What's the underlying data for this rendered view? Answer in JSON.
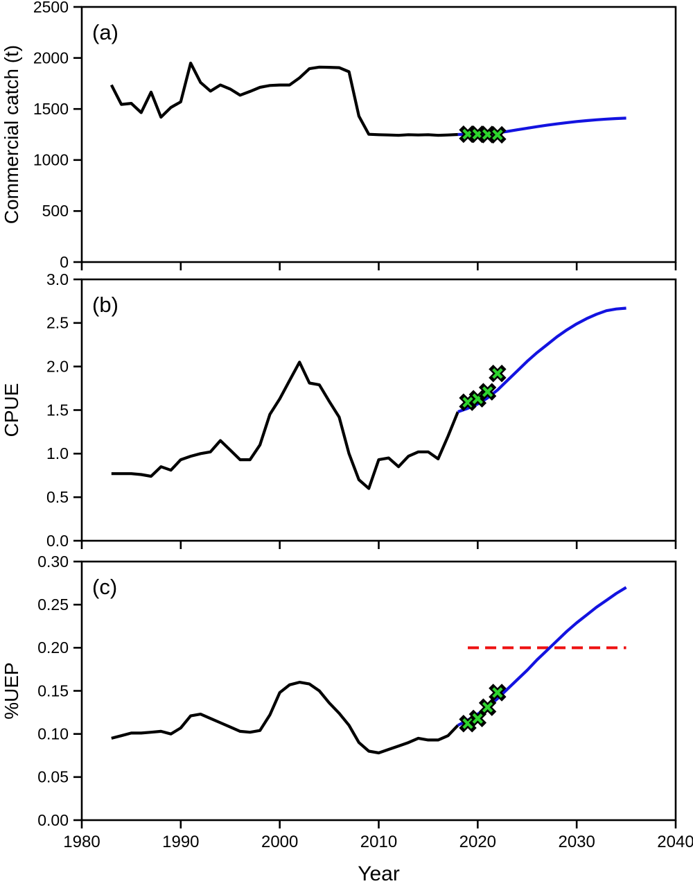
{
  "figure": {
    "description": "Three-panel fishery stock assessment time-series figure",
    "background": "#ffffff",
    "x_axis": {
      "title": "Year",
      "tick_labels": [
        "1980",
        "1990",
        "2000",
        "2010",
        "2020",
        "2030",
        "2040"
      ],
      "range": [
        1980,
        2040
      ]
    },
    "colors": {
      "observed_line": "#000000",
      "projected_line": "#1313e0",
      "marker_fill": "#2ed42e",
      "marker_outline": "#000000",
      "threshold_line": "#ee1111",
      "axis": "#000000"
    }
  },
  "chart_data": [
    {
      "type": "line",
      "panel_letter": "(a)",
      "title": "",
      "xlabel": "Year",
      "ylabel": "Commercial catch (t)",
      "ylim": [
        0,
        2500
      ],
      "y_tick_labels": [
        "0",
        "500",
        "1000",
        "1500",
        "2000",
        "2500"
      ],
      "grid": false,
      "legend": "none",
      "series": [
        {
          "name": "observed-catch",
          "style": "solid-black",
          "x": [
            1983,
            1984,
            1985,
            1986,
            1987,
            1988,
            1989,
            1990,
            1991,
            1992,
            1993,
            1994,
            1995,
            1996,
            1997,
            1998,
            1999,
            2000,
            2001,
            2002,
            2003,
            2004,
            2005,
            2006,
            2007,
            2008,
            2009,
            2010,
            2011,
            2012,
            2013,
            2014,
            2015,
            2016,
            2017,
            2018
          ],
          "y": [
            1735,
            1545,
            1555,
            1465,
            1665,
            1420,
            1515,
            1570,
            1950,
            1760,
            1675,
            1735,
            1695,
            1635,
            1672,
            1712,
            1730,
            1735,
            1735,
            1805,
            1895,
            1910,
            1908,
            1905,
            1865,
            1430,
            1252,
            1248,
            1245,
            1242,
            1248,
            1245,
            1248,
            1242,
            1245,
            1250
          ]
        },
        {
          "name": "projected-catch",
          "style": "solid-blue",
          "x": [
            2018,
            2019,
            2020,
            2021,
            2022,
            2023,
            2024,
            2025,
            2026,
            2027,
            2028,
            2029,
            2030,
            2031,
            2032,
            2033,
            2034,
            2035
          ],
          "y": [
            1250,
            1253,
            1256,
            1260,
            1266,
            1280,
            1296,
            1312,
            1327,
            1341,
            1354,
            1366,
            1377,
            1386,
            1394,
            1401,
            1406,
            1410
          ]
        },
        {
          "name": "recent-observations",
          "style": "green-x-markers",
          "x": [
            2019,
            2020,
            2021,
            2022
          ],
          "y": [
            1253,
            1252,
            1250,
            1247
          ]
        }
      ]
    },
    {
      "type": "line",
      "panel_letter": "(b)",
      "title": "",
      "xlabel": "Year",
      "ylabel": "CPUE",
      "ylim": [
        0.0,
        3.0
      ],
      "y_tick_labels": [
        "0.0",
        "0.5",
        "1.0",
        "1.5",
        "2.0",
        "2.5",
        "3.0"
      ],
      "grid": false,
      "legend": "none",
      "series": [
        {
          "name": "observed-cpue",
          "style": "solid-black",
          "x": [
            1983,
            1984,
            1985,
            1986,
            1987,
            1988,
            1989,
            1990,
            1991,
            1992,
            1993,
            1994,
            1995,
            1996,
            1997,
            1998,
            1999,
            2000,
            2001,
            2002,
            2003,
            2004,
            2005,
            2006,
            2007,
            2008,
            2009,
            2010,
            2011,
            2012,
            2013,
            2014,
            2015,
            2016,
            2017,
            2018
          ],
          "y": [
            0.77,
            0.77,
            0.77,
            0.76,
            0.74,
            0.85,
            0.81,
            0.93,
            0.97,
            1.0,
            1.02,
            1.15,
            1.04,
            0.93,
            0.93,
            1.1,
            1.45,
            1.63,
            1.84,
            2.05,
            1.81,
            1.79,
            1.6,
            1.42,
            1.0,
            0.7,
            0.6,
            0.93,
            0.95,
            0.85,
            0.97,
            1.02,
            1.02,
            0.94,
            1.2,
            1.48
          ]
        },
        {
          "name": "projected-cpue",
          "style": "solid-blue",
          "x": [
            2018,
            2019,
            2020,
            2021,
            2022,
            2023,
            2024,
            2025,
            2026,
            2027,
            2028,
            2029,
            2030,
            2031,
            2032,
            2033,
            2034,
            2035
          ],
          "y": [
            1.48,
            1.52,
            1.57,
            1.64,
            1.73,
            1.84,
            1.95,
            2.06,
            2.16,
            2.25,
            2.34,
            2.42,
            2.49,
            2.55,
            2.6,
            2.64,
            2.66,
            2.67
          ]
        },
        {
          "name": "recent-observations",
          "style": "green-x-markers",
          "x": [
            2019,
            2020,
            2021,
            2022
          ],
          "y": [
            1.59,
            1.63,
            1.71,
            1.92
          ]
        }
      ]
    },
    {
      "type": "line",
      "panel_letter": "(c)",
      "title": "",
      "xlabel": "Year",
      "ylabel": "%UEP",
      "ylim": [
        0.0,
        0.3
      ],
      "y_tick_labels": [
        "0.00",
        "0.05",
        "0.10",
        "0.15",
        "0.20",
        "0.25",
        "0.30"
      ],
      "grid": false,
      "legend": "none",
      "threshold": {
        "name": "reference-level",
        "value": 0.2,
        "year_start": 2019,
        "year_end": 2035,
        "style": "dashed-red"
      },
      "series": [
        {
          "name": "observed-uep",
          "style": "solid-black",
          "x": [
            1983,
            1984,
            1985,
            1986,
            1987,
            1988,
            1989,
            1990,
            1991,
            1992,
            1993,
            1994,
            1995,
            1996,
            1997,
            1998,
            1999,
            2000,
            2001,
            2002,
            2003,
            2004,
            2005,
            2006,
            2007,
            2008,
            2009,
            2010,
            2011,
            2012,
            2013,
            2014,
            2015,
            2016,
            2017,
            2018
          ],
          "y": [
            0.095,
            0.098,
            0.101,
            0.101,
            0.102,
            0.103,
            0.1,
            0.107,
            0.121,
            0.123,
            0.118,
            0.113,
            0.108,
            0.103,
            0.102,
            0.104,
            0.122,
            0.148,
            0.157,
            0.16,
            0.158,
            0.15,
            0.136,
            0.124,
            0.11,
            0.09,
            0.08,
            0.078,
            0.082,
            0.086,
            0.09,
            0.095,
            0.093,
            0.093,
            0.098,
            0.11
          ]
        },
        {
          "name": "projected-uep",
          "style": "solid-blue",
          "x": [
            2018,
            2019,
            2020,
            2021,
            2022,
            2023,
            2024,
            2025,
            2026,
            2027,
            2028,
            2029,
            2030,
            2031,
            2032,
            2033,
            2034,
            2035
          ],
          "y": [
            0.11,
            0.116,
            0.123,
            0.131,
            0.141,
            0.152,
            0.163,
            0.174,
            0.186,
            0.197,
            0.208,
            0.219,
            0.229,
            0.238,
            0.247,
            0.255,
            0.263,
            0.27
          ]
        },
        {
          "name": "recent-observations",
          "style": "green-x-markers",
          "x": [
            2019,
            2020,
            2021,
            2022
          ],
          "y": [
            0.112,
            0.118,
            0.131,
            0.148
          ]
        }
      ]
    }
  ]
}
